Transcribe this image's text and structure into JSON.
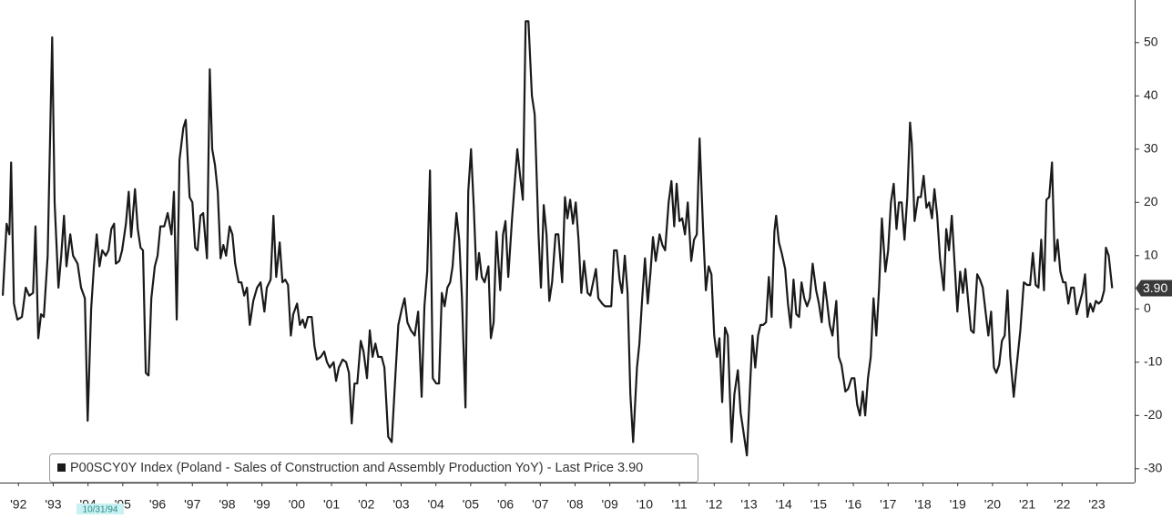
{
  "chart_data": {
    "type": "line",
    "xlim": [
      1991.97,
      2024.56
    ],
    "ylim": [
      -32.6,
      58
    ],
    "yticks": [
      50,
      40,
      30,
      20,
      10,
      0,
      -10,
      -20,
      -30
    ],
    "xticks": [
      {
        "value": 1992.5,
        "label": "'92"
      },
      {
        "value": 1993.5,
        "label": "'93"
      },
      {
        "value": 1994.5,
        "label": "'94"
      },
      {
        "value": 1995.5,
        "label": "'95"
      },
      {
        "value": 1996.5,
        "label": "'96"
      },
      {
        "value": 1997.5,
        "label": "'97"
      },
      {
        "value": 1998.5,
        "label": "'98"
      },
      {
        "value": 1999.5,
        "label": "'99"
      },
      {
        "value": 2000.5,
        "label": "'00"
      },
      {
        "value": 2001.5,
        "label": "'01"
      },
      {
        "value": 2002.5,
        "label": "'02"
      },
      {
        "value": 2003.5,
        "label": "'03"
      },
      {
        "value": 2004.5,
        "label": "'04"
      },
      {
        "value": 2005.5,
        "label": "'05"
      },
      {
        "value": 2006.5,
        "label": "'06"
      },
      {
        "value": 2007.5,
        "label": "'07"
      },
      {
        "value": 2008.5,
        "label": "'08"
      },
      {
        "value": 2009.5,
        "label": "'09"
      },
      {
        "value": 2010.5,
        "label": "'10"
      },
      {
        "value": 2011.5,
        "label": "'11"
      },
      {
        "value": 2012.5,
        "label": "'12"
      },
      {
        "value": 2013.5,
        "label": "'13"
      },
      {
        "value": 2014.5,
        "label": "'14"
      },
      {
        "value": 2015.5,
        "label": "'15"
      },
      {
        "value": 2016.5,
        "label": "'16"
      },
      {
        "value": 2017.5,
        "label": "'17"
      },
      {
        "value": 2018.5,
        "label": "'18"
      },
      {
        "value": 2019.5,
        "label": "'19"
      },
      {
        "value": 2020.5,
        "label": "'20"
      },
      {
        "value": 2021.5,
        "label": "'21"
      },
      {
        "value": 2022.5,
        "label": "'22"
      },
      {
        "value": 2023.5,
        "label": "'23"
      }
    ],
    "last_price_label": "3.90",
    "crosshair_label": "10/31/94",
    "x": [
      1992.05,
      1992.16,
      1992.24,
      1992.29,
      1992.37,
      1992.47,
      1992.6,
      1992.71,
      1992.81,
      1992.92,
      1992.99,
      1993.07,
      1993.15,
      1993.23,
      1993.34,
      1993.47,
      1993.54,
      1993.65,
      1993.73,
      1993.81,
      1993.88,
      1993.99,
      1994.07,
      1994.2,
      1994.3,
      1994.41,
      1994.49,
      1994.59,
      1994.67,
      1994.75,
      1994.83,
      1994.91,
      1995.01,
      1995.09,
      1995.17,
      1995.25,
      1995.3,
      1995.4,
      1995.48,
      1995.59,
      1995.67,
      1995.74,
      1995.85,
      1995.93,
      1996.01,
      1996.08,
      1996.16,
      1996.24,
      1996.32,
      1996.42,
      1996.5,
      1996.58,
      1996.69,
      1996.79,
      1996.9,
      1996.97,
      1997.05,
      1997.13,
      1997.24,
      1997.31,
      1997.42,
      1997.5,
      1997.58,
      1997.65,
      1997.73,
      1997.81,
      1997.92,
      1998.0,
      1998.07,
      1998.15,
      1998.23,
      1998.31,
      1998.39,
      1998.47,
      1998.57,
      1998.65,
      1998.73,
      1998.83,
      1998.91,
      1998.99,
      1999.07,
      1999.15,
      1999.25,
      1999.36,
      1999.46,
      1999.57,
      1999.64,
      1999.75,
      1999.83,
      1999.91,
      2000.01,
      2000.09,
      2000.17,
      2000.25,
      2000.33,
      2000.4,
      2000.51,
      2000.59,
      2000.67,
      2000.74,
      2000.82,
      2000.93,
      2001.01,
      2001.08,
      2001.19,
      2001.29,
      2001.37,
      2001.45,
      2001.56,
      2001.63,
      2001.71,
      2001.82,
      2001.92,
      2002.0,
      2002.08,
      2002.16,
      2002.24,
      2002.34,
      2002.42,
      2002.52,
      2002.6,
      2002.68,
      2002.76,
      2002.84,
      2002.94,
      2003.02,
      2003.13,
      2003.23,
      2003.34,
      2003.42,
      2003.52,
      2003.6,
      2003.68,
      2003.78,
      2003.89,
      2003.99,
      2004.09,
      2004.17,
      2004.25,
      2004.33,
      2004.41,
      2004.51,
      2004.59,
      2004.67,
      2004.75,
      2004.83,
      2004.91,
      2004.98,
      2005.09,
      2005.17,
      2005.25,
      2005.35,
      2005.43,
      2005.51,
      2005.59,
      2005.67,
      2005.74,
      2005.82,
      2005.9,
      2006.01,
      2006.08,
      2006.16,
      2006.24,
      2006.35,
      2006.43,
      2006.5,
      2006.58,
      2006.69,
      2006.84,
      2006.92,
      2007.0,
      2007.08,
      2007.16,
      2007.26,
      2007.34,
      2007.45,
      2007.52,
      2007.6,
      2007.68,
      2007.76,
      2007.84,
      2007.94,
      2008.02,
      2008.13,
      2008.21,
      2008.28,
      2008.36,
      2008.44,
      2008.52,
      2008.6,
      2008.68,
      2008.76,
      2008.86,
      2008.94,
      2009.02,
      2009.1,
      2009.17,
      2009.28,
      2009.36,
      2009.46,
      2009.54,
      2009.62,
      2009.7,
      2009.78,
      2009.85,
      2009.93,
      2010.01,
      2010.09,
      2010.17,
      2010.28,
      2010.35,
      2010.43,
      2010.51,
      2010.59,
      2010.67,
      2010.74,
      2010.82,
      2010.93,
      2011.01,
      2011.09,
      2011.19,
      2011.27,
      2011.35,
      2011.42,
      2011.5,
      2011.58,
      2011.66,
      2011.74,
      2011.84,
      2011.92,
      2012.0,
      2012.08,
      2012.18,
      2012.26,
      2012.34,
      2012.42,
      2012.5,
      2012.58,
      2012.65,
      2012.73,
      2012.81,
      2012.89,
      2013.0,
      2013.08,
      2013.18,
      2013.26,
      2013.34,
      2013.44,
      2013.52,
      2013.6,
      2013.68,
      2013.76,
      2013.83,
      2013.91,
      2013.99,
      2014.07,
      2014.15,
      2014.23,
      2014.28,
      2014.36,
      2014.44,
      2014.54,
      2014.62,
      2014.7,
      2014.78,
      2014.86,
      2014.94,
      2015.01,
      2015.09,
      2015.17,
      2015.25,
      2015.33,
      2015.43,
      2015.51,
      2015.59,
      2015.67,
      2015.74,
      2015.82,
      2015.9,
      2016.01,
      2016.08,
      2016.16,
      2016.27,
      2016.35,
      2016.45,
      2016.53,
      2016.61,
      2016.69,
      2016.77,
      2016.84,
      2016.92,
      2017.0,
      2017.08,
      2017.16,
      2017.24,
      2017.32,
      2017.42,
      2017.5,
      2017.58,
      2017.66,
      2017.74,
      2017.81,
      2017.89,
      2017.97,
      2018.05,
      2018.13,
      2018.18,
      2018.26,
      2018.36,
      2018.44,
      2018.52,
      2018.6,
      2018.68,
      2018.76,
      2018.83,
      2018.91,
      2018.99,
      2019.1,
      2019.17,
      2019.25,
      2019.33,
      2019.41,
      2019.49,
      2019.57,
      2019.65,
      2019.72,
      2019.8,
      2019.88,
      2019.96,
      2020.06,
      2020.14,
      2020.22,
      2020.3,
      2020.38,
      2020.46,
      2020.54,
      2020.61,
      2020.69,
      2020.77,
      2020.85,
      2020.93,
      2021.01,
      2021.11,
      2021.19,
      2021.3,
      2021.4,
      2021.5,
      2021.58,
      2021.66,
      2021.74,
      2021.82,
      2021.9,
      2021.98,
      2022.05,
      2022.13,
      2022.21,
      2022.29,
      2022.37,
      2022.45,
      2022.53,
      2022.6,
      2022.68,
      2022.76,
      2022.84,
      2022.92,
      2023.0,
      2023.08,
      2023.16,
      2023.23,
      2023.31,
      2023.39,
      2023.47,
      2023.55,
      2023.63,
      2023.71,
      2023.76,
      2023.84,
      2023.94
    ],
    "series": [
      {
        "name": "P00SCY0Y Index (Poland - Sales of Construction and Assembly Production YoY) - Last Price 3.90",
        "color": "#1a1a1a",
        "values": [
          2.5,
          16,
          14,
          27.5,
          1,
          -2,
          -1.5,
          4,
          2.5,
          3,
          15.5,
          -5.5,
          -1,
          -1.5,
          10,
          51,
          20,
          4,
          10,
          17.5,
          8,
          14,
          10,
          8.5,
          4,
          2,
          -21,
          0,
          8,
          14,
          8,
          11,
          10,
          11,
          15,
          16,
          8.5,
          9,
          11,
          16,
          22,
          13.5,
          22.5,
          15,
          11.5,
          11,
          -12,
          -12.5,
          2,
          8,
          10,
          15.5,
          15.5,
          18,
          14,
          22,
          -2,
          28,
          34,
          35.5,
          21,
          20,
          11.5,
          11,
          17.5,
          18,
          9.5,
          45,
          30,
          27,
          22,
          9.5,
          12,
          10,
          15.5,
          14,
          8.5,
          5,
          5,
          2.5,
          4,
          -3,
          1.5,
          4,
          5,
          -0.5,
          4,
          5.5,
          17.5,
          6,
          12.5,
          5,
          5.5,
          4.5,
          -5,
          -1,
          1,
          -3,
          -2,
          -3.5,
          -1.5,
          -1.5,
          -7,
          -9.5,
          -9,
          -8,
          -10,
          -11,
          -10,
          -13.5,
          -11,
          -9.5,
          -10,
          -12,
          -21.5,
          -14,
          -14,
          -6,
          -8,
          -13,
          -4,
          -9,
          -6.5,
          -9,
          -9,
          -11,
          -24,
          -25,
          -12,
          -3,
          0,
          2,
          -2.5,
          -4,
          -5,
          -0.5,
          -16.5,
          0.5,
          7,
          26,
          -13,
          -14,
          -14,
          3,
          0.5,
          4,
          5,
          8,
          18,
          13,
          2,
          -18.5,
          22,
          30,
          19,
          5.5,
          10.5,
          6,
          5,
          8,
          -5.5,
          -2.5,
          14.5,
          3.5,
          14,
          16.5,
          6,
          17,
          30,
          25,
          20.5,
          54,
          54,
          40,
          36.5,
          14,
          4,
          19.5,
          14,
          1.5,
          5,
          14,
          14,
          5,
          21,
          17,
          20.5,
          16,
          20,
          13,
          3,
          9,
          3,
          2.5,
          5,
          7.5,
          2,
          1,
          0.5,
          0.5,
          0.5,
          11,
          11,
          5.5,
          3,
          10,
          3,
          -16,
          -25,
          -11,
          -6.5,
          2,
          9.5,
          1,
          7,
          13.5,
          9,
          14,
          12,
          11,
          20,
          24,
          15.5,
          23.5,
          16.5,
          17,
          14,
          20,
          9,
          13,
          14,
          32,
          15,
          3.5,
          8,
          6.5,
          -5,
          -9,
          -5.5,
          -17.5,
          -3.5,
          -5,
          -25,
          -16,
          -11.5,
          -19.5,
          -23,
          -27.5,
          -16,
          -5,
          -11,
          -5,
          -3,
          -3,
          -2.5,
          6,
          -1.5,
          14.5,
          17.5,
          12.5,
          10.5,
          7.5,
          1,
          -3.5,
          5.5,
          -1,
          -1.5,
          5,
          2,
          0.5,
          2,
          8.5,
          3.5,
          1,
          -2.5,
          5,
          1.5,
          -3,
          -5,
          1.5,
          -9,
          -10.5,
          -15.5,
          -15,
          -13,
          -13,
          -18,
          -20,
          -15.5,
          -20,
          -13,
          -9,
          2,
          -5,
          4,
          17,
          7,
          11,
          20,
          23.5,
          15,
          20,
          20,
          13,
          21,
          35,
          31,
          16.5,
          21,
          21,
          25,
          19,
          20,
          17,
          22.5,
          17.5,
          9.5,
          3.5,
          15,
          11,
          17.5,
          8.5,
          -0.5,
          7,
          3,
          7.5,
          1.5,
          -4,
          -4.5,
          6.5,
          5.5,
          4,
          -0.5,
          -5,
          -0.5,
          -11,
          -12,
          -10.5,
          -6,
          -5,
          3.5,
          -9,
          -16.5,
          -11,
          -4,
          5,
          4.5,
          4.5,
          10.5,
          4.5,
          4,
          13,
          3.5,
          20.5,
          21,
          27.5,
          9,
          13,
          7,
          5,
          5,
          1,
          4,
          4,
          -1,
          1,
          3,
          6.5,
          -1.5,
          1,
          -0.5,
          1.5,
          1,
          1.5,
          3.5,
          11.5,
          10,
          3.9
        ]
      }
    ]
  }
}
